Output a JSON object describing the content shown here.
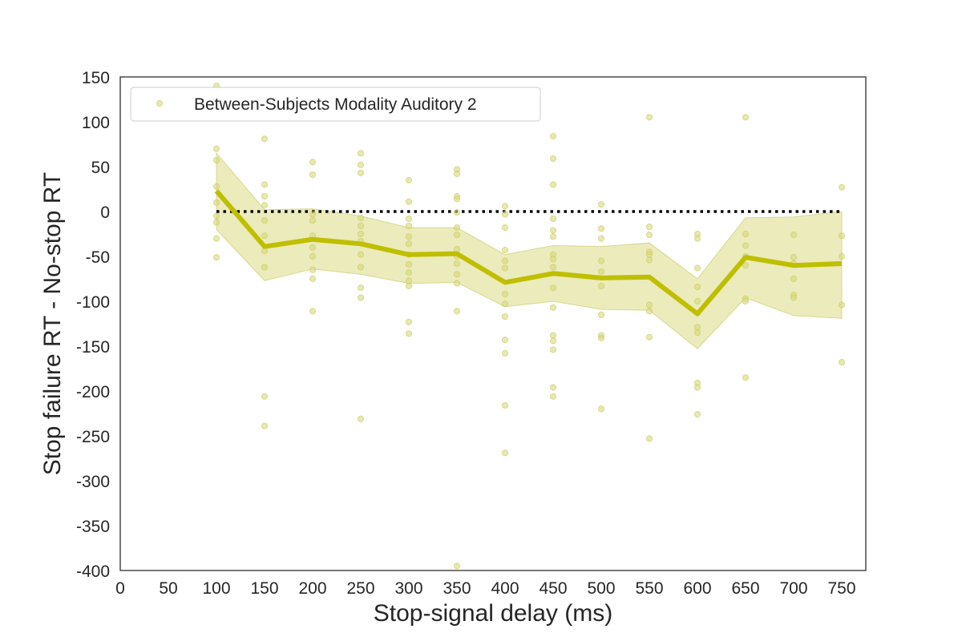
{
  "chart_data": {
    "type": "line",
    "xlabel": "Stop-signal delay (ms)",
    "ylabel": "Stop failure RT - No-stop RT",
    "xlim": [
      0,
      775
    ],
    "ylim": [
      -400,
      150
    ],
    "xticks": [
      0,
      50,
      100,
      150,
      200,
      250,
      300,
      350,
      400,
      450,
      500,
      550,
      600,
      650,
      700,
      750
    ],
    "yticks": [
      150,
      100,
      50,
      0,
      -50,
      -100,
      -150,
      -200,
      -250,
      -300,
      -350,
      -400
    ],
    "grid": false,
    "legend_position": "top-left",
    "reference_line": {
      "y": 0,
      "style": "dotted",
      "color": "#000000"
    },
    "colors": {
      "series": "#bfbf00",
      "band": "#e8e8b0",
      "points": "#d9d97a"
    },
    "series": [
      {
        "name": "Between-Subjects Modality Auditory 2",
        "x": [
          100,
          150,
          200,
          250,
          300,
          350,
          400,
          450,
          500,
          550,
          600,
          650,
          700,
          750
        ],
        "mean": [
          23,
          -39,
          -31,
          -36,
          -48,
          -47,
          -79,
          -69,
          -74,
          -73,
          -114,
          -51,
          -60,
          -58
        ],
        "ci_lower": [
          -20,
          -77,
          -64,
          -70,
          -80,
          -79,
          -106,
          -100,
          -109,
          -110,
          -153,
          -96,
          -116,
          -119
        ],
        "ci_upper": [
          65,
          2,
          3,
          -5,
          -18,
          -18,
          -48,
          -38,
          -39,
          -35,
          -75,
          -7,
          -6,
          0
        ],
        "points": [
          [
            100,
            140
          ],
          [
            100,
            70
          ],
          [
            100,
            57
          ],
          [
            100,
            28
          ],
          [
            100,
            10
          ],
          [
            100,
            -5
          ],
          [
            100,
            -12
          ],
          [
            100,
            -30
          ],
          [
            100,
            -51
          ],
          [
            150,
            81
          ],
          [
            150,
            30
          ],
          [
            150,
            17
          ],
          [
            150,
            7
          ],
          [
            150,
            -10
          ],
          [
            150,
            -27
          ],
          [
            150,
            -44
          ],
          [
            150,
            -62
          ],
          [
            150,
            -206
          ],
          [
            150,
            -239
          ],
          [
            200,
            55
          ],
          [
            200,
            41
          ],
          [
            200,
            -3
          ],
          [
            200,
            -10
          ],
          [
            200,
            -27
          ],
          [
            200,
            -40
          ],
          [
            200,
            -50
          ],
          [
            200,
            -65
          ],
          [
            200,
            -75
          ],
          [
            200,
            -111
          ],
          [
            250,
            65
          ],
          [
            250,
            52
          ],
          [
            250,
            43
          ],
          [
            250,
            -7
          ],
          [
            250,
            -16
          ],
          [
            250,
            -25
          ],
          [
            250,
            -33
          ],
          [
            250,
            -48
          ],
          [
            250,
            -62
          ],
          [
            250,
            -85
          ],
          [
            250,
            -96
          ],
          [
            250,
            -231
          ],
          [
            300,
            35
          ],
          [
            300,
            11
          ],
          [
            300,
            -8
          ],
          [
            300,
            -16
          ],
          [
            300,
            -28
          ],
          [
            300,
            -36
          ],
          [
            300,
            -48
          ],
          [
            300,
            -59
          ],
          [
            300,
            -68
          ],
          [
            300,
            -77
          ],
          [
            300,
            -83
          ],
          [
            300,
            -123
          ],
          [
            300,
            -136
          ],
          [
            350,
            47
          ],
          [
            350,
            42
          ],
          [
            350,
            17
          ],
          [
            350,
            14
          ],
          [
            350,
            -1
          ],
          [
            350,
            -18
          ],
          [
            350,
            -26
          ],
          [
            350,
            -42
          ],
          [
            350,
            -50
          ],
          [
            350,
            -58
          ],
          [
            350,
            -70
          ],
          [
            350,
            -80
          ],
          [
            350,
            -111
          ],
          [
            350,
            -395
          ],
          [
            400,
            6
          ],
          [
            400,
            -3
          ],
          [
            400,
            -18
          ],
          [
            400,
            -43
          ],
          [
            400,
            -55
          ],
          [
            400,
            -63
          ],
          [
            400,
            -92
          ],
          [
            400,
            -103
          ],
          [
            400,
            -117
          ],
          [
            400,
            -143
          ],
          [
            400,
            -158
          ],
          [
            400,
            -216
          ],
          [
            400,
            -269
          ],
          [
            450,
            84
          ],
          [
            450,
            59
          ],
          [
            450,
            30
          ],
          [
            450,
            -8
          ],
          [
            450,
            -21
          ],
          [
            450,
            -28
          ],
          [
            450,
            -48
          ],
          [
            450,
            -53
          ],
          [
            450,
            -62
          ],
          [
            450,
            -85
          ],
          [
            450,
            -107
          ],
          [
            450,
            -138
          ],
          [
            450,
            -144
          ],
          [
            450,
            -154
          ],
          [
            450,
            -196
          ],
          [
            450,
            -206
          ],
          [
            500,
            8
          ],
          [
            500,
            -19
          ],
          [
            500,
            -30
          ],
          [
            500,
            -55
          ],
          [
            500,
            -67
          ],
          [
            500,
            -83
          ],
          [
            500,
            -115
          ],
          [
            500,
            -138
          ],
          [
            500,
            -141
          ],
          [
            500,
            -220
          ],
          [
            550,
            105
          ],
          [
            550,
            -17
          ],
          [
            550,
            -26
          ],
          [
            550,
            -45
          ],
          [
            550,
            -48
          ],
          [
            550,
            -54
          ],
          [
            550,
            -104
          ],
          [
            550,
            -111
          ],
          [
            550,
            -140
          ],
          [
            550,
            -253
          ],
          [
            600,
            -25
          ],
          [
            600,
            -30
          ],
          [
            600,
            -63
          ],
          [
            600,
            -84
          ],
          [
            600,
            -100
          ],
          [
            600,
            -129
          ],
          [
            600,
            -135
          ],
          [
            600,
            -191
          ],
          [
            600,
            -196
          ],
          [
            600,
            -226
          ],
          [
            650,
            105
          ],
          [
            650,
            -25
          ],
          [
            650,
            -38
          ],
          [
            650,
            -50
          ],
          [
            650,
            -60
          ],
          [
            650,
            -97
          ],
          [
            650,
            -100
          ],
          [
            650,
            -185
          ],
          [
            700,
            -26
          ],
          [
            700,
            -51
          ],
          [
            700,
            -58
          ],
          [
            700,
            -75
          ],
          [
            700,
            -93
          ],
          [
            700,
            -96
          ],
          [
            750,
            27
          ],
          [
            750,
            -27
          ],
          [
            750,
            -50
          ],
          [
            750,
            -104
          ],
          [
            750,
            -168
          ]
        ]
      }
    ]
  }
}
